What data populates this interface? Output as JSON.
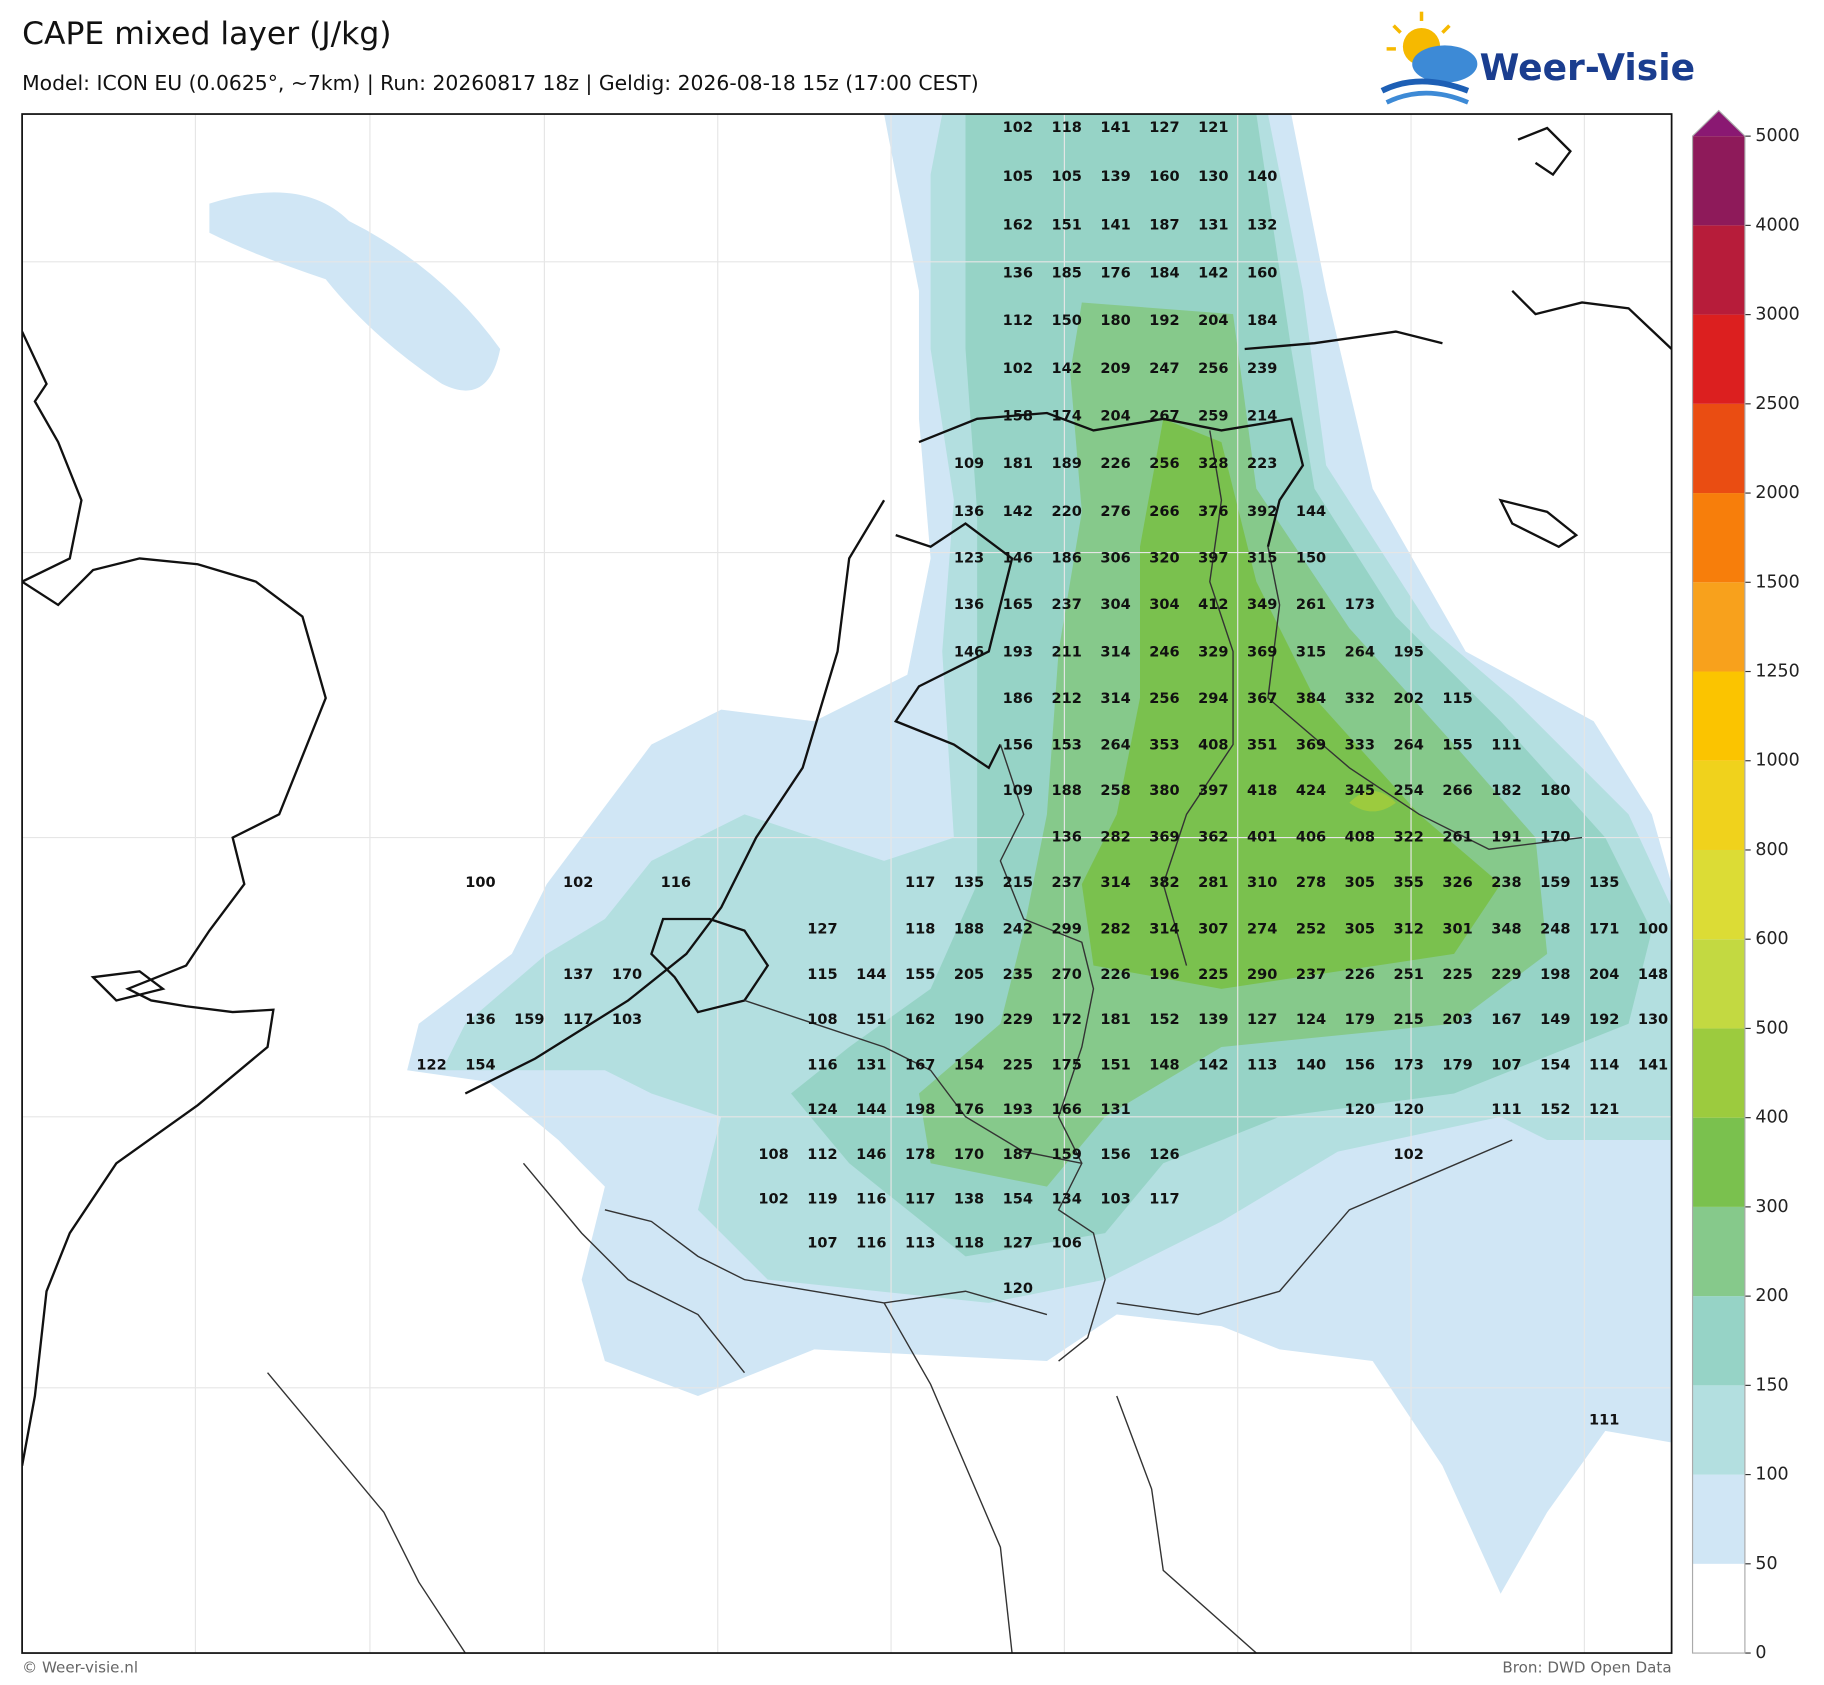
{
  "header": {
    "title": "CAPE mixed layer (J/kg)",
    "subtitle": "Model: ICON EU (0.0625°, ~7km)  |  Run: 20260817 18z  |  Geldig: 2026-08-18 15z (17:00 CEST)"
  },
  "logo": "Weer-Visie",
  "footer": {
    "left": "© Weer-visie.nl",
    "right": "Bron: DWD Open Data"
  },
  "colorbar": {
    "ticks": [
      0,
      50,
      100,
      150,
      200,
      300,
      400,
      500,
      600,
      800,
      1000,
      1250,
      1500,
      2000,
      2500,
      3000,
      4000,
      5000
    ],
    "colors": [
      "#ffffff",
      "#d0e6f5",
      "#b3dfe0",
      "#96d3c6",
      "#86c98b",
      "#7ac14e",
      "#9ccb3e",
      "#c3d941",
      "#dcdc35",
      "#f0d21c",
      "#fbc400",
      "#f8a11c",
      "#f77e0b",
      "#ea4d12",
      "#dc1f1f",
      "#b71c3a",
      "#8e1a5a",
      "#8a1872"
    ]
  },
  "map": {
    "values": [
      [
        null,
        null,
        null,
        null,
        null,
        null,
        null,
        null,
        null,
        null,
        null,
        null,
        102,
        118,
        141,
        127,
        121,
        null,
        null,
        null,
        null,
        null,
        null,
        null,
        null,
        null
      ],
      [
        null,
        null,
        null,
        null,
        null,
        null,
        null,
        null,
        null,
        null,
        null,
        null,
        105,
        105,
        139,
        160,
        130,
        140,
        null,
        null,
        null,
        null,
        null,
        null,
        null,
        null
      ],
      [
        null,
        null,
        null,
        null,
        null,
        null,
        null,
        null,
        null,
        null,
        null,
        null,
        162,
        151,
        141,
        187,
        131,
        132,
        null,
        null,
        null,
        null,
        null,
        null,
        null,
        null
      ],
      [
        null,
        null,
        null,
        null,
        null,
        null,
        null,
        null,
        null,
        null,
        null,
        null,
        136,
        185,
        176,
        184,
        142,
        160,
        null,
        null,
        null,
        null,
        null,
        null,
        null,
        null
      ],
      [
        null,
        null,
        null,
        null,
        null,
        null,
        null,
        null,
        null,
        null,
        null,
        null,
        112,
        150,
        180,
        192,
        204,
        184,
        null,
        null,
        null,
        null,
        null,
        null,
        null,
        null
      ],
      [
        null,
        null,
        null,
        null,
        null,
        null,
        null,
        null,
        null,
        null,
        null,
        null,
        102,
        142,
        209,
        247,
        256,
        239,
        null,
        null,
        null,
        null,
        null,
        null,
        null,
        null
      ],
      [
        null,
        null,
        null,
        null,
        null,
        null,
        null,
        null,
        null,
        null,
        null,
        null,
        158,
        174,
        204,
        267,
        259,
        214,
        null,
        null,
        null,
        null,
        null,
        null,
        null,
        null
      ],
      [
        null,
        null,
        null,
        null,
        null,
        null,
        null,
        null,
        null,
        null,
        null,
        109,
        181,
        189,
        226,
        256,
        328,
        223,
        null,
        null,
        null,
        null,
        null,
        null,
        null,
        null
      ],
      [
        null,
        null,
        null,
        null,
        null,
        null,
        null,
        null,
        null,
        null,
        null,
        136,
        142,
        220,
        276,
        266,
        376,
        392,
        144,
        null,
        null,
        null,
        null,
        null,
        null,
        null
      ],
      [
        null,
        null,
        null,
        null,
        null,
        null,
        null,
        null,
        null,
        null,
        null,
        123,
        146,
        186,
        306,
        320,
        397,
        315,
        150,
        null,
        null,
        null,
        null,
        null,
        null,
        null
      ],
      [
        null,
        null,
        null,
        null,
        null,
        null,
        null,
        null,
        null,
        null,
        null,
        136,
        165,
        237,
        304,
        304,
        412,
        349,
        261,
        173,
        null,
        null,
        null,
        null,
        null,
        null
      ],
      [
        null,
        null,
        null,
        null,
        null,
        null,
        null,
        null,
        null,
        null,
        null,
        146,
        193,
        211,
        314,
        246,
        329,
        369,
        315,
        264,
        195,
        null,
        null,
        null,
        null,
        null
      ],
      [
        null,
        null,
        null,
        null,
        null,
        null,
        null,
        null,
        null,
        null,
        null,
        null,
        186,
        212,
        314,
        256,
        294,
        367,
        384,
        332,
        202,
        115,
        null,
        null,
        null,
        null
      ],
      [
        null,
        null,
        null,
        null,
        null,
        null,
        null,
        null,
        null,
        null,
        null,
        null,
        156,
        153,
        264,
        353,
        408,
        351,
        369,
        333,
        264,
        155,
        111,
        null,
        null,
        null
      ],
      [
        null,
        null,
        null,
        null,
        null,
        null,
        null,
        null,
        null,
        null,
        null,
        null,
        109,
        188,
        258,
        380,
        397,
        418,
        424,
        345,
        254,
        266,
        182,
        180,
        null,
        null
      ],
      [
        null,
        null,
        null,
        null,
        null,
        null,
        null,
        null,
        null,
        null,
        null,
        null,
        null,
        136,
        282,
        369,
        362,
        401,
        406,
        408,
        322,
        261,
        191,
        170,
        null,
        null
      ],
      [
        null,
        100,
        null,
        102,
        null,
        116,
        null,
        null,
        null,
        null,
        117,
        135,
        215,
        237,
        314,
        382,
        281,
        310,
        278,
        305,
        355,
        326,
        238,
        159,
        135,
        null
      ],
      [
        null,
        null,
        null,
        null,
        null,
        null,
        null,
        null,
        127,
        null,
        118,
        188,
        242,
        299,
        282,
        314,
        307,
        274,
        252,
        305,
        312,
        301,
        348,
        248,
        171,
        100
      ],
      [
        null,
        null,
        null,
        137,
        170,
        null,
        null,
        null,
        115,
        144,
        155,
        205,
        235,
        270,
        226,
        196,
        225,
        290,
        237,
        226,
        251,
        225,
        229,
        198,
        204,
        148
      ],
      [
        null,
        136,
        159,
        117,
        103,
        null,
        null,
        null,
        108,
        151,
        162,
        190,
        229,
        172,
        181,
        152,
        139,
        127,
        124,
        179,
        215,
        203,
        167,
        149,
        192,
        130
      ],
      [
        122,
        154,
        null,
        null,
        null,
        null,
        null,
        null,
        116,
        131,
        167,
        154,
        225,
        175,
        151,
        148,
        142,
        113,
        140,
        156,
        173,
        179,
        107,
        154,
        114,
        141
      ],
      [
        null,
        null,
        null,
        null,
        null,
        null,
        null,
        null,
        124,
        144,
        198,
        176,
        193,
        166,
        131,
        null,
        null,
        null,
        null,
        120,
        120,
        null,
        111,
        152,
        121,
        null
      ],
      [
        null,
        null,
        null,
        null,
        null,
        null,
        null,
        108,
        112,
        146,
        178,
        170,
        187,
        159,
        156,
        126,
        null,
        null,
        null,
        null,
        102,
        null,
        null,
        null,
        null,
        null
      ],
      [
        null,
        null,
        null,
        null,
        null,
        null,
        null,
        102,
        119,
        116,
        117,
        138,
        154,
        134,
        103,
        117,
        null,
        null,
        null,
        null,
        null,
        null,
        null,
        null,
        null,
        null
      ],
      [
        null,
        null,
        null,
        null,
        null,
        null,
        null,
        null,
        107,
        116,
        113,
        118,
        127,
        106,
        null,
        null,
        null,
        null,
        null,
        null,
        null,
        null,
        null,
        null,
        null,
        null
      ],
      [
        null,
        null,
        null,
        null,
        null,
        null,
        null,
        null,
        null,
        null,
        null,
        null,
        120,
        null,
        null,
        null,
        null,
        null,
        null,
        null,
        null,
        null,
        null,
        null,
        null,
        null
      ],
      [
        null,
        null,
        null,
        null,
        null,
        null,
        null,
        null,
        null,
        null,
        null,
        null,
        null,
        null,
        null,
        null,
        null,
        null,
        null,
        null,
        null,
        null,
        null,
        null,
        null,
        null
      ],
      [
        null,
        null,
        null,
        null,
        null,
        null,
        null,
        null,
        null,
        null,
        null,
        null,
        null,
        null,
        null,
        null,
        null,
        null,
        null,
        null,
        null,
        null,
        null,
        null,
        null,
        null
      ],
      [
        null,
        null,
        null,
        null,
        null,
        null,
        null,
        null,
        null,
        null,
        null,
        null,
        null,
        null,
        null,
        null,
        null,
        null,
        null,
        null,
        null,
        null,
        null,
        null,
        111,
        null
      ]
    ]
  }
}
